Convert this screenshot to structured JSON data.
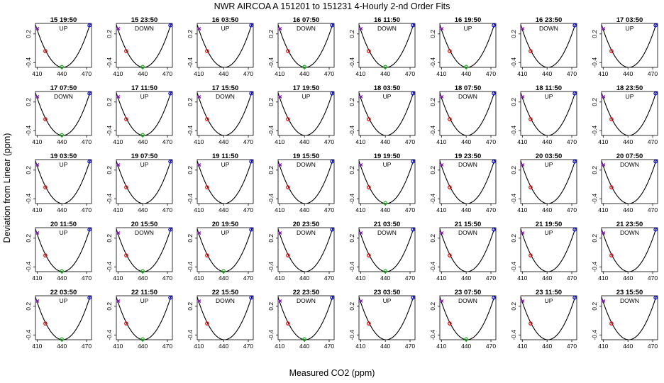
{
  "chart_data": {
    "type": "line",
    "title": "NWR   AIRCOA A   151201 to 151231   4-Hourly 2-nd Order Fits",
    "xlabel": "Measured CO2 (ppm)",
    "ylabel": "Deviation from Linear (ppm)",
    "xlim": [
      408,
      476
    ],
    "ylim": [
      -0.5,
      0.42
    ],
    "x_ticks": [
      410,
      440,
      470
    ],
    "x_tick_labels": [
      "410",
      "440",
      "470"
    ],
    "y_ticks": [
      -0.4,
      0.2
    ],
    "y_tick_labels": [
      "-0.4",
      "0.2"
    ],
    "curve": {
      "vertex_x": 441,
      "vertex_y": -0.5,
      "curvature": 0.00082
    },
    "marker_colors": {
      "purple": "#8800cc",
      "red": "#dd0000",
      "green": "#00bb00",
      "blue": "#0000ee"
    },
    "points": [
      {
        "color": "purple",
        "x": 410.5,
        "y": 0.31
      },
      {
        "color": "red",
        "x": 420,
        "y": -0.16
      },
      {
        "color": "green",
        "x": 440,
        "y": -0.49
      },
      {
        "color": "blue",
        "x": 473.5,
        "y": 0.38
      }
    ],
    "panels": [
      {
        "time": "15 19:50",
        "dir": "UP",
        "green": true
      },
      {
        "time": "15 23:50",
        "dir": "DOWN",
        "green": true
      },
      {
        "time": "16 03:50",
        "dir": "UP",
        "green": false
      },
      {
        "time": "16 07:50",
        "dir": "DOWN",
        "green": true
      },
      {
        "time": "16 11:50",
        "dir": "DOWN",
        "green": true
      },
      {
        "time": "16 19:50",
        "dir": "UP",
        "green": true
      },
      {
        "time": "16 23:50",
        "dir": "DOWN",
        "green": false
      },
      {
        "time": "17 03:50",
        "dir": "UP",
        "green": false
      },
      {
        "time": "17 07:50",
        "dir": "DOWN",
        "green": true
      },
      {
        "time": "17 11:50",
        "dir": "UP",
        "green": true
      },
      {
        "time": "17 15:50",
        "dir": "DOWN",
        "green": false
      },
      {
        "time": "17 19:50",
        "dir": "UP",
        "green": false
      },
      {
        "time": "18 03:50",
        "dir": "UP",
        "green": false
      },
      {
        "time": "18 07:50",
        "dir": "DOWN",
        "green": false
      },
      {
        "time": "18 11:50",
        "dir": "UP",
        "green": false
      },
      {
        "time": "18 23:50",
        "dir": "UP",
        "green": false
      },
      {
        "time": "19 03:50",
        "dir": "UP",
        "green": false
      },
      {
        "time": "19 07:50",
        "dir": "UP",
        "green": false
      },
      {
        "time": "19 11:50",
        "dir": "UP",
        "green": false
      },
      {
        "time": "19 15:50",
        "dir": "DOWN",
        "green": false
      },
      {
        "time": "19 19:50",
        "dir": "UP",
        "green": true
      },
      {
        "time": "19 23:50",
        "dir": "DOWN",
        "green": false
      },
      {
        "time": "20 03:50",
        "dir": "UP",
        "green": false
      },
      {
        "time": "20 07:50",
        "dir": "DOWN",
        "green": false
      },
      {
        "time": "20 11:50",
        "dir": "UP",
        "green": true
      },
      {
        "time": "20 15:50",
        "dir": "DOWN",
        "green": true
      },
      {
        "time": "20 19:50",
        "dir": "UP",
        "green": true
      },
      {
        "time": "20 23:50",
        "dir": "DOWN",
        "green": false
      },
      {
        "time": "21 03:50",
        "dir": "DOWN",
        "green": true
      },
      {
        "time": "21 15:50",
        "dir": "DOWN",
        "green": false
      },
      {
        "time": "21 19:50",
        "dir": "UP",
        "green": false
      },
      {
        "time": "21 23:50",
        "dir": "DOWN",
        "green": false
      },
      {
        "time": "22 03:50",
        "dir": "UP",
        "green": true
      },
      {
        "time": "22 11:50",
        "dir": "UP",
        "green": true
      },
      {
        "time": "22 15:50",
        "dir": "DOWN",
        "green": false
      },
      {
        "time": "22 23:50",
        "dir": "DOWN",
        "green": true
      },
      {
        "time": "23 03:50",
        "dir": "UP",
        "green": false
      },
      {
        "time": "23 07:50",
        "dir": "DOWN",
        "green": true
      },
      {
        "time": "23 11:50",
        "dir": "UP",
        "green": false
      },
      {
        "time": "23 15:50",
        "dir": "DOWN",
        "green": false
      }
    ]
  }
}
